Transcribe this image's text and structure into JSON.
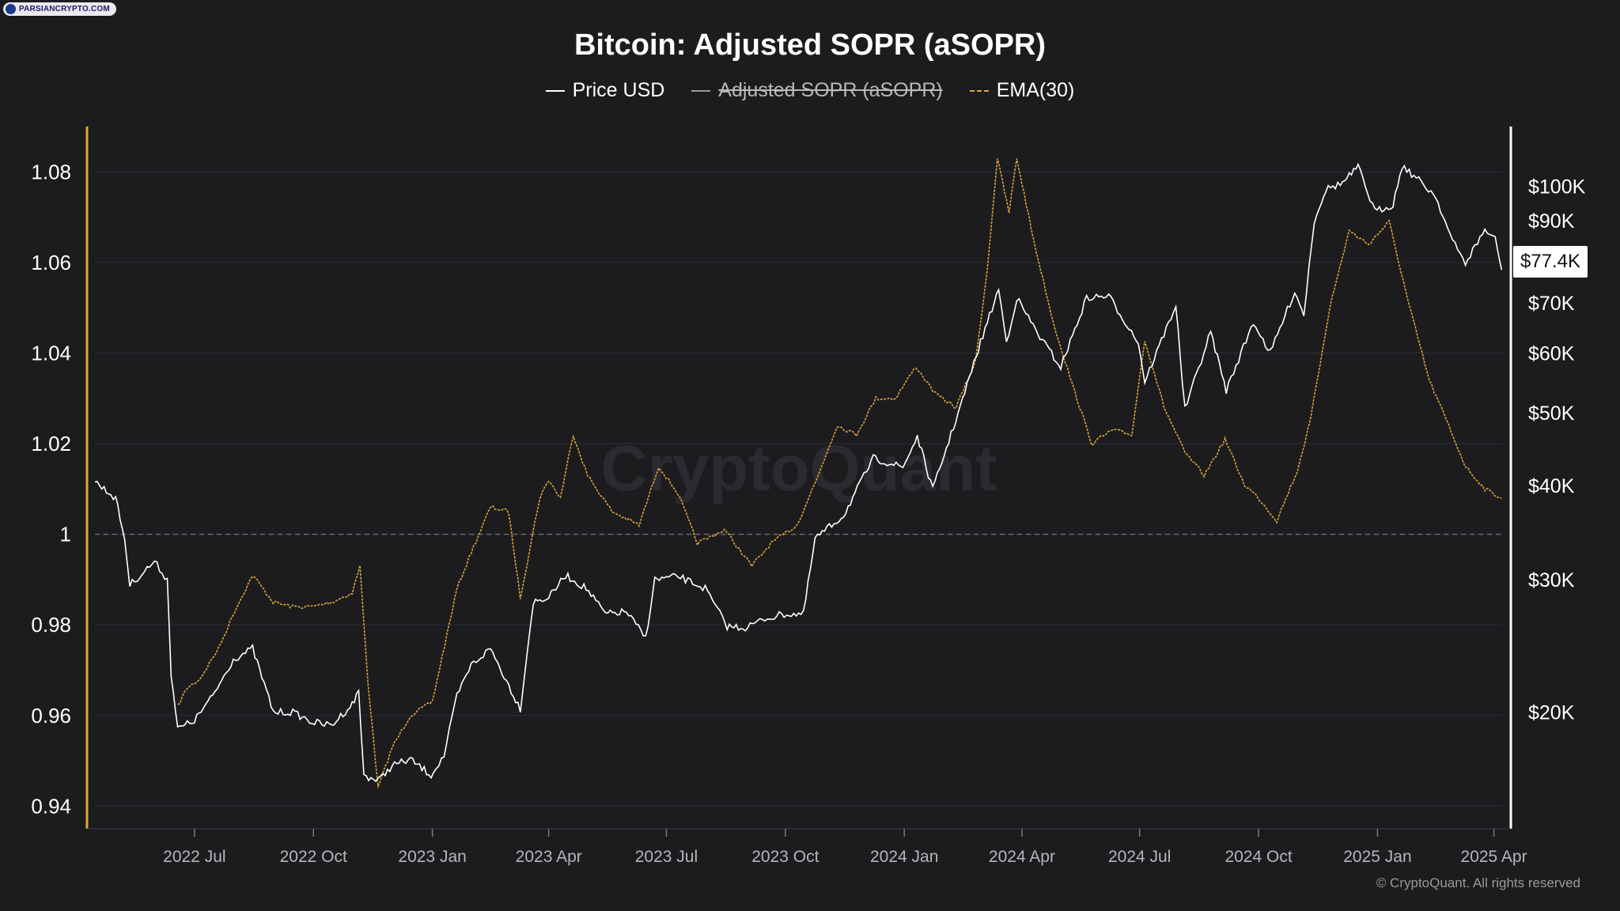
{
  "badge": {
    "text": "PARSIANCRYPTO.COM"
  },
  "title": "Bitcoin: Adjusted SOPR (aSOPR)",
  "legend": [
    {
      "label": "Price USD",
      "color": "#ffffff",
      "style": "solid",
      "disabled": false
    },
    {
      "label": "Adjusted SOPR (aSOPR)",
      "color": "#9a9a9a",
      "style": "solid",
      "disabled": true
    },
    {
      "label": "EMA(30)",
      "color": "#d9a53a",
      "style": "dashed",
      "disabled": false
    }
  ],
  "watermark": "CryptoQuant",
  "copyright": "© CryptoQuant. All rights reserved",
  "last_price_label": "$77.4K",
  "colors": {
    "background": "#1c1c1e",
    "price": "#ffffff",
    "ema": "#d9a53a",
    "left_axis": "#e0a93a",
    "grid": "#2c2c3c"
  },
  "chart_data": {
    "type": "line",
    "title": "Bitcoin: Adjusted SOPR (aSOPR)",
    "x_range": [
      "2022-04-15",
      "2025-04-08"
    ],
    "x_ticks": [
      "2022 Jul",
      "2022 Oct",
      "2023 Jan",
      "2023 Apr",
      "2023 Jul",
      "2023 Oct",
      "2024 Jan",
      "2024 Apr",
      "2024 Jul",
      "2024 Oct",
      "2025 Jan",
      "2025 Apr"
    ],
    "x_tick_dates": [
      "2022-07-01",
      "2022-10-01",
      "2023-01-01",
      "2023-04-01",
      "2023-07-01",
      "2023-10-01",
      "2024-01-01",
      "2024-04-01",
      "2024-07-01",
      "2024-10-01",
      "2025-01-01",
      "2025-04-01"
    ],
    "y_left": {
      "ticks": [
        0.94,
        0.96,
        0.98,
        1,
        1.02,
        1.04,
        1.06,
        1.08
      ],
      "tick_labels": [
        "0.94",
        "0.96",
        "0.98",
        "1",
        "1.02",
        "1.04",
        "1.06",
        "1.08"
      ],
      "range": [
        0.935,
        1.09
      ],
      "reference_line": 1
    },
    "y_right": {
      "scale": "log",
      "ticks": [
        20000,
        30000,
        40000,
        50000,
        60000,
        70000,
        90000,
        100000
      ],
      "tick_labels": [
        "$20K",
        "$30K",
        "$40K",
        "$50K",
        "$60K",
        "$70K",
        "$90K",
        "$100K"
      ],
      "range": [
        14000,
        120000
      ]
    },
    "grid": true,
    "legend_position": "top-center",
    "series": [
      {
        "name": "Price USD",
        "axis": "right",
        "points": [
          [
            "2022-04-15",
            40500
          ],
          [
            "2022-05-01",
            38500
          ],
          [
            "2022-05-08",
            34000
          ],
          [
            "2022-05-12",
            29500
          ],
          [
            "2022-05-31",
            31700
          ],
          [
            "2022-06-10",
            30000
          ],
          [
            "2022-06-13",
            22500
          ],
          [
            "2022-06-18",
            19000
          ],
          [
            "2022-07-01",
            19500
          ],
          [
            "2022-07-15",
            21000
          ],
          [
            "2022-07-31",
            23500
          ],
          [
            "2022-08-15",
            24300
          ],
          [
            "2022-08-31",
            20000
          ],
          [
            "2022-09-15",
            20000
          ],
          [
            "2022-09-30",
            19400
          ],
          [
            "2022-10-15",
            19200
          ],
          [
            "2022-10-31",
            20500
          ],
          [
            "2022-11-05",
            21300
          ],
          [
            "2022-11-09",
            16500
          ],
          [
            "2022-11-20",
            16200
          ],
          [
            "2022-12-01",
            17000
          ],
          [
            "2022-12-15",
            17300
          ],
          [
            "2022-12-31",
            16500
          ],
          [
            "2023-01-10",
            17500
          ],
          [
            "2023-01-20",
            21000
          ],
          [
            "2023-01-31",
            23100
          ],
          [
            "2023-02-15",
            24300
          ],
          [
            "2023-03-10",
            20200
          ],
          [
            "2023-03-20",
            28000
          ],
          [
            "2023-04-01",
            28400
          ],
          [
            "2023-04-14",
            30400
          ],
          [
            "2023-04-30",
            29200
          ],
          [
            "2023-05-15",
            27000
          ],
          [
            "2023-05-31",
            27200
          ],
          [
            "2023-06-15",
            25100
          ],
          [
            "2023-06-22",
            30000
          ],
          [
            "2023-07-10",
            30300
          ],
          [
            "2023-07-31",
            29200
          ],
          [
            "2023-08-17",
            26000
          ],
          [
            "2023-08-31",
            25900
          ],
          [
            "2023-09-15",
            26600
          ],
          [
            "2023-09-30",
            27000
          ],
          [
            "2023-10-15",
            27000
          ],
          [
            "2023-10-24",
            34000
          ],
          [
            "2023-11-15",
            36500
          ],
          [
            "2023-12-08",
            43500
          ],
          [
            "2023-12-31",
            42300
          ],
          [
            "2024-01-11",
            46500
          ],
          [
            "2024-01-23",
            39500
          ],
          [
            "2024-02-15",
            52000
          ],
          [
            "2024-02-29",
            62000
          ],
          [
            "2024-03-14",
            73000
          ],
          [
            "2024-03-20",
            62000
          ],
          [
            "2024-03-28",
            71000
          ],
          [
            "2024-04-15",
            63000
          ],
          [
            "2024-05-01",
            57500
          ],
          [
            "2024-05-21",
            71000
          ],
          [
            "2024-06-07",
            71500
          ],
          [
            "2024-06-30",
            62000
          ],
          [
            "2024-07-05",
            55000
          ],
          [
            "2024-07-29",
            69500
          ],
          [
            "2024-08-05",
            50500
          ],
          [
            "2024-08-25",
            64000
          ],
          [
            "2024-09-06",
            53500
          ],
          [
            "2024-09-27",
            66000
          ],
          [
            "2024-10-10",
            60000
          ],
          [
            "2024-10-29",
            72500
          ],
          [
            "2024-11-05",
            67500
          ],
          [
            "2024-11-13",
            90000
          ],
          [
            "2024-11-22",
            99000
          ],
          [
            "2024-12-05",
            101000
          ],
          [
            "2024-12-17",
            106000
          ],
          [
            "2024-12-30",
            92500
          ],
          [
            "2025-01-13",
            94500
          ],
          [
            "2025-01-20",
            106500
          ],
          [
            "2025-01-31",
            102500
          ],
          [
            "2025-02-15",
            97000
          ],
          [
            "2025-02-28",
            84500
          ],
          [
            "2025-03-10",
            79000
          ],
          [
            "2025-03-25",
            87500
          ],
          [
            "2025-04-02",
            85000
          ],
          [
            "2025-04-07",
            77400
          ]
        ]
      },
      {
        "name": "EMA(30)",
        "axis": "left",
        "points": [
          [
            "2022-06-18",
            0.962
          ],
          [
            "2022-06-25",
            0.966
          ],
          [
            "2022-07-05",
            0.968
          ],
          [
            "2022-07-20",
            0.975
          ],
          [
            "2022-08-01",
            0.983
          ],
          [
            "2022-08-15",
            0.991
          ],
          [
            "2022-08-31",
            0.985
          ],
          [
            "2022-09-15",
            0.984
          ],
          [
            "2022-09-30",
            0.984
          ],
          [
            "2022-10-15",
            0.985
          ],
          [
            "2022-10-31",
            0.987
          ],
          [
            "2022-11-06",
            0.993
          ],
          [
            "2022-11-12",
            0.968
          ],
          [
            "2022-11-20",
            0.944
          ],
          [
            "2022-12-01",
            0.953
          ],
          [
            "2022-12-15",
            0.96
          ],
          [
            "2023-01-01",
            0.963
          ],
          [
            "2023-01-20",
            0.988
          ],
          [
            "2023-01-31",
            0.996
          ],
          [
            "2023-02-15",
            1.006
          ],
          [
            "2023-03-01",
            1.005
          ],
          [
            "2023-03-10",
            0.986
          ],
          [
            "2023-03-25",
            1.008
          ],
          [
            "2023-04-01",
            1.012
          ],
          [
            "2023-04-10",
            1.008
          ],
          [
            "2023-04-20",
            1.022
          ],
          [
            "2023-05-01",
            1.013
          ],
          [
            "2023-05-20",
            1.005
          ],
          [
            "2023-06-10",
            1.002
          ],
          [
            "2023-06-25",
            1.015
          ],
          [
            "2023-07-10",
            1.009
          ],
          [
            "2023-07-25",
            0.998
          ],
          [
            "2023-08-15",
            1.001
          ],
          [
            "2023-09-05",
            0.993
          ],
          [
            "2023-09-20",
            0.998
          ],
          [
            "2023-10-10",
            1.002
          ],
          [
            "2023-10-25",
            1.012
          ],
          [
            "2023-11-10",
            1.024
          ],
          [
            "2023-11-25",
            1.022
          ],
          [
            "2023-12-10",
            1.03
          ],
          [
            "2023-12-25",
            1.03
          ],
          [
            "2024-01-10",
            1.037
          ],
          [
            "2024-01-25",
            1.031
          ],
          [
            "2024-02-10",
            1.028
          ],
          [
            "2024-02-25",
            1.038
          ],
          [
            "2024-03-05",
            1.058
          ],
          [
            "2024-03-13",
            1.083
          ],
          [
            "2024-03-22",
            1.071
          ],
          [
            "2024-03-28",
            1.083
          ],
          [
            "2024-04-10",
            1.065
          ],
          [
            "2024-04-25",
            1.047
          ],
          [
            "2024-05-10",
            1.033
          ],
          [
            "2024-05-25",
            1.02
          ],
          [
            "2024-06-10",
            1.023
          ],
          [
            "2024-06-25",
            1.022
          ],
          [
            "2024-07-05",
            1.043
          ],
          [
            "2024-07-20",
            1.028
          ],
          [
            "2024-08-05",
            1.018
          ],
          [
            "2024-08-20",
            1.013
          ],
          [
            "2024-09-05",
            1.021
          ],
          [
            "2024-09-20",
            1.011
          ],
          [
            "2024-10-01",
            1.008
          ],
          [
            "2024-10-15",
            1.003
          ],
          [
            "2024-10-31",
            1.014
          ],
          [
            "2024-11-10",
            1.025
          ],
          [
            "2024-11-25",
            1.05
          ],
          [
            "2024-12-10",
            1.067
          ],
          [
            "2024-12-25",
            1.064
          ],
          [
            "2025-01-10",
            1.069
          ],
          [
            "2025-01-25",
            1.051
          ],
          [
            "2025-02-10",
            1.034
          ],
          [
            "2025-02-25",
            1.024
          ],
          [
            "2025-03-10",
            1.015
          ],
          [
            "2025-03-25",
            1.01
          ],
          [
            "2025-04-07",
            1.008
          ]
        ]
      }
    ]
  }
}
